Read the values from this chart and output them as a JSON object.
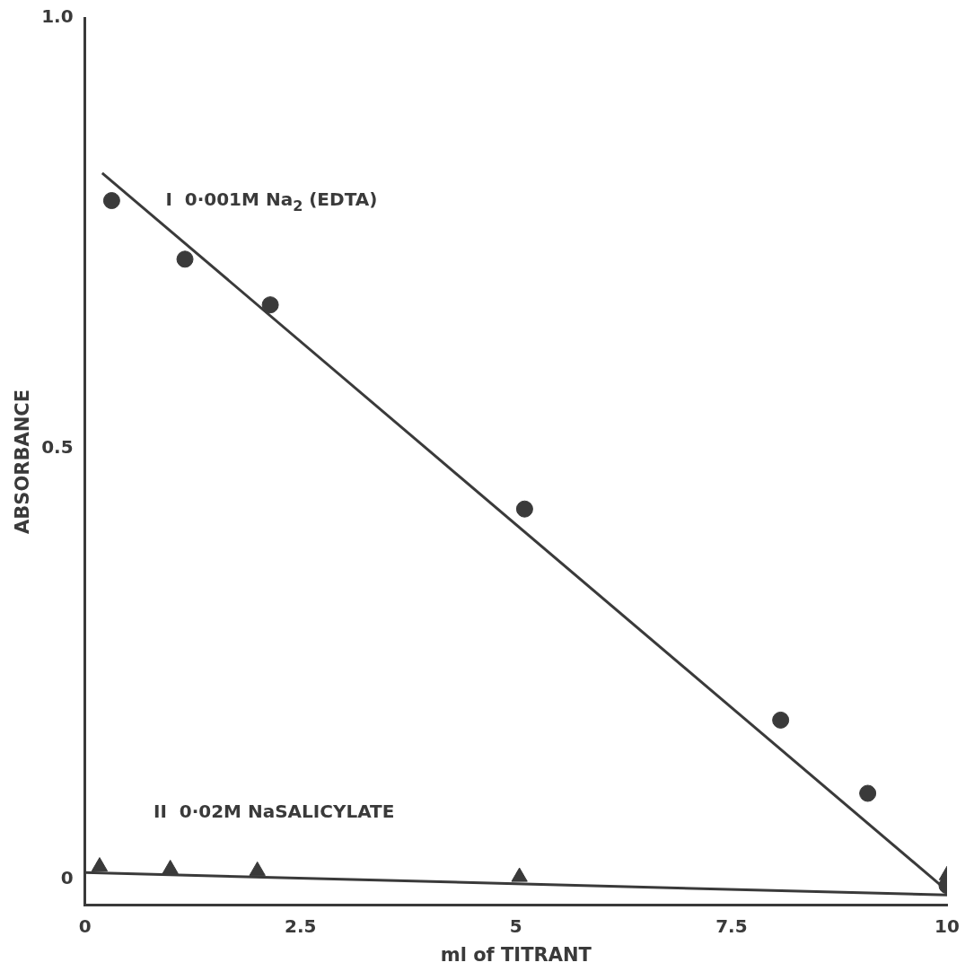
{
  "chart_data": {
    "type": "scatter",
    "xlabel": "ml of TITRANT",
    "ylabel": "ABSORBANCE",
    "xlim": [
      0,
      10
    ],
    "xticks": [
      0,
      2.5,
      5,
      7.5,
      10
    ],
    "ylim": [
      -0.03,
      1.0
    ],
    "yticks": [
      0,
      0.5,
      {
        "value": 1.0,
        "label": "1.0"
      }
    ],
    "grid": false,
    "legend": false,
    "series": [
      {
        "name": "I  0·001M Na$_{2}$ (EDTA)",
        "type": "scatter",
        "marker": "circle",
        "color": "#3a3a3a",
        "x": [
          0.31,
          1.16,
          2.15,
          5.1,
          8.07,
          9.08,
          10
        ],
        "values": [
          0.788,
          0.72,
          0.667,
          0.43,
          0.185,
          0.1,
          -0.007
        ]
      },
      {
        "name": "II  0·02M NaSALICYLATE",
        "type": "scatter",
        "marker": "triangle",
        "color": "#3a3a3a",
        "x": [
          0.17,
          0.99,
          2.0,
          5.04,
          10
        ],
        "values": [
          0.015,
          0.012,
          0.01,
          0.003,
          0.005
        ]
      },
      {
        "type": "line",
        "marker": "none",
        "color": "#3a3a3a",
        "x": [
          0.2,
          10
        ],
        "values": [
          0.82,
          -0.013
        ]
      },
      {
        "type": "line",
        "marker": "none",
        "color": "#3a3a3a",
        "x": [
          0,
          10
        ],
        "values": [
          0.008,
          -0.018
        ]
      }
    ]
  }
}
